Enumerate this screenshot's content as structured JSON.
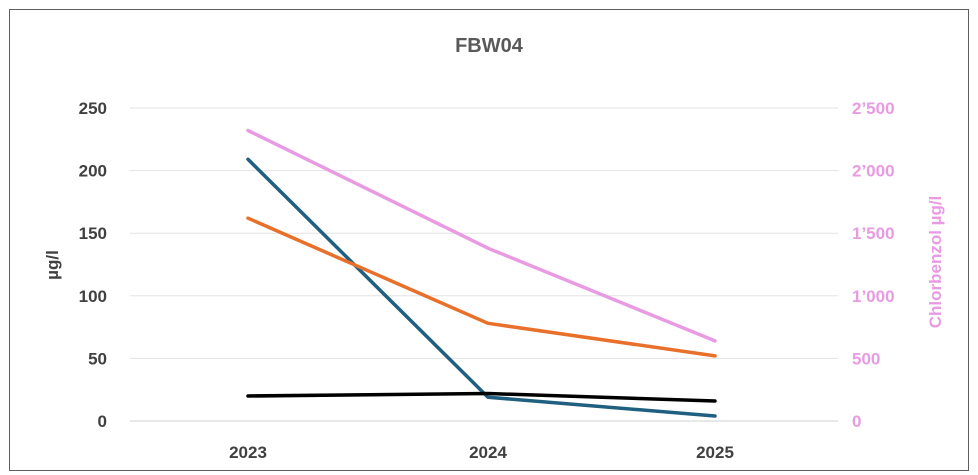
{
  "chart_data": {
    "type": "line",
    "title": "FBW04",
    "categories": [
      "2023",
      "2024",
      "2025"
    ],
    "y_left": {
      "label": "µg/l",
      "range": [
        0,
        250
      ],
      "ticks": [
        0,
        50,
        100,
        150,
        200,
        250
      ],
      "tick_labels": [
        "0",
        "50",
        "100",
        "150",
        "200",
        "250"
      ]
    },
    "y_right": {
      "label": "Chlorbenzol µg/l",
      "range": [
        0,
        2500
      ],
      "ticks": [
        0,
        500,
        1000,
        1500,
        2000,
        2500
      ],
      "tick_labels": [
        "0",
        "500",
        "1’000",
        "1’500",
        "2’000",
        "2’500"
      ]
    },
    "grid": true,
    "legend": "none",
    "series": [
      {
        "axis": "right",
        "color": "#e89be2",
        "values": [
          2320,
          1380,
          640
        ]
      },
      {
        "axis": "left",
        "color": "#1f5f7f",
        "values": [
          209,
          19,
          4
        ]
      },
      {
        "axis": "left",
        "color": "#e8702a",
        "values": [
          162,
          78,
          52
        ]
      },
      {
        "axis": "left",
        "color": "#000000",
        "values": [
          20,
          22,
          16
        ]
      }
    ]
  }
}
